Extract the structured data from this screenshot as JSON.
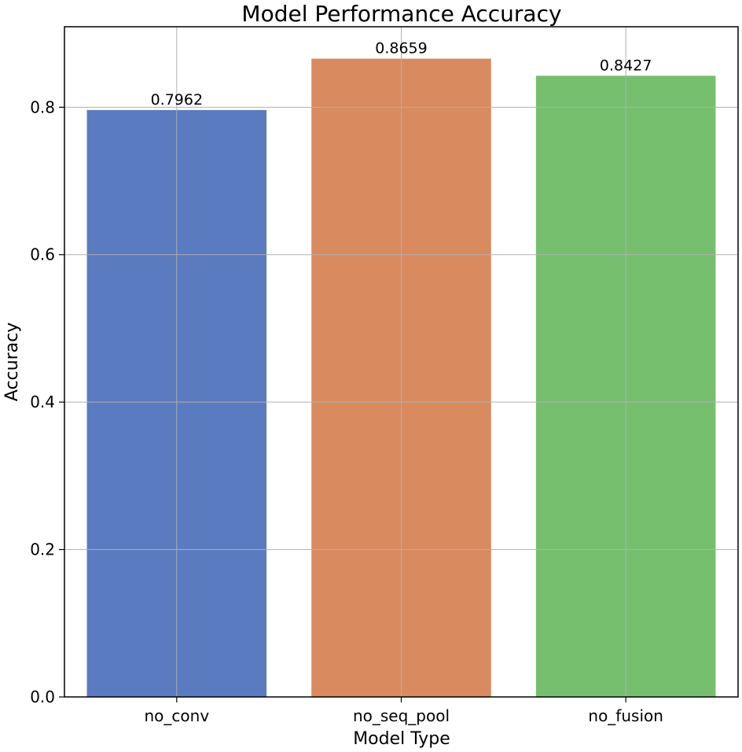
{
  "chart_data": {
    "type": "bar",
    "title": "Model Performance Accuracy",
    "xlabel": "Model Type",
    "ylabel": "Accuracy",
    "categories": [
      "no_conv",
      "no_seq_pool",
      "no_fusion"
    ],
    "values": [
      0.7962,
      0.8659,
      0.8427
    ],
    "value_labels": [
      "0.7962",
      "0.8659",
      "0.8427"
    ],
    "colors": [
      "#5a7bbf",
      "#d98a5f",
      "#76bf6f"
    ],
    "ylim": [
      0,
      0.9092
    ],
    "yticks": [
      0.0,
      0.2,
      0.4,
      0.6,
      0.8
    ],
    "ytick_labels": [
      "0.0",
      "0.2",
      "0.4",
      "0.6",
      "0.8"
    ],
    "grid": true,
    "grid_color": "#b0b0b0",
    "legend": false
  }
}
